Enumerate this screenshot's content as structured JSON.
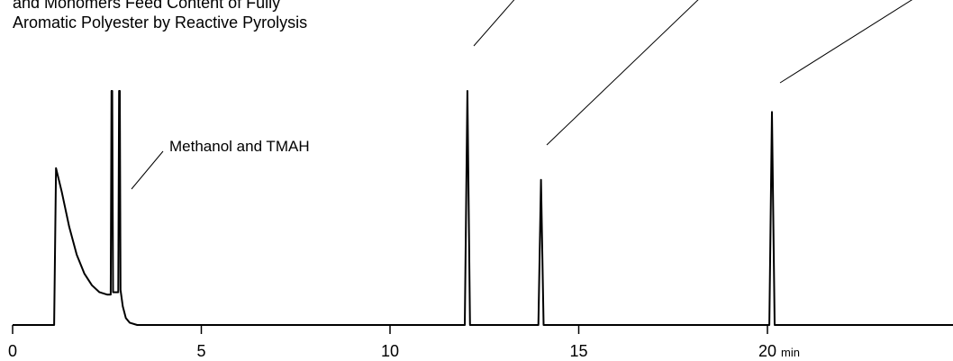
{
  "chart_data": {
    "type": "line",
    "title_lines": [
      "and Monomers Feed Content of Fully",
      "Aromatic Polyester by Reactive Pyrolysis"
    ],
    "xlabel": "",
    "ylabel": "",
    "x_unit": "min",
    "x_ticks": [
      0,
      5,
      10,
      15,
      20
    ],
    "xlim": [
      0,
      25
    ],
    "ylim": [
      0,
      100
    ],
    "grid": false,
    "series": [
      {
        "x": [
          0,
          1.1,
          1.15,
          1.3,
          1.5,
          1.7,
          1.9,
          2.1,
          2.3,
          2.5,
          2.6,
          2.62,
          2.63,
          2.64,
          2.66,
          2.8,
          2.82,
          2.83,
          2.84,
          2.86,
          2.92,
          3.0,
          3.1,
          3.3,
          11.98,
          12.05,
          12.12,
          13.93,
          14.0,
          14.07,
          20.05,
          20.12,
          20.19,
          25
        ],
        "y": [
          0,
          0,
          67,
          57,
          42,
          30,
          22,
          17,
          14,
          13,
          13,
          100,
          100,
          100,
          14,
          14,
          100,
          100,
          100,
          15,
          8,
          3,
          1,
          0,
          0,
          100,
          0,
          0,
          62,
          0,
          0,
          91,
          0,
          0
        ]
      }
    ],
    "annotations": [
      {
        "text": "Methanol and TMAH"
      },
      {
        "text": ""
      },
      {
        "text": ""
      },
      {
        "text": ""
      }
    ]
  }
}
